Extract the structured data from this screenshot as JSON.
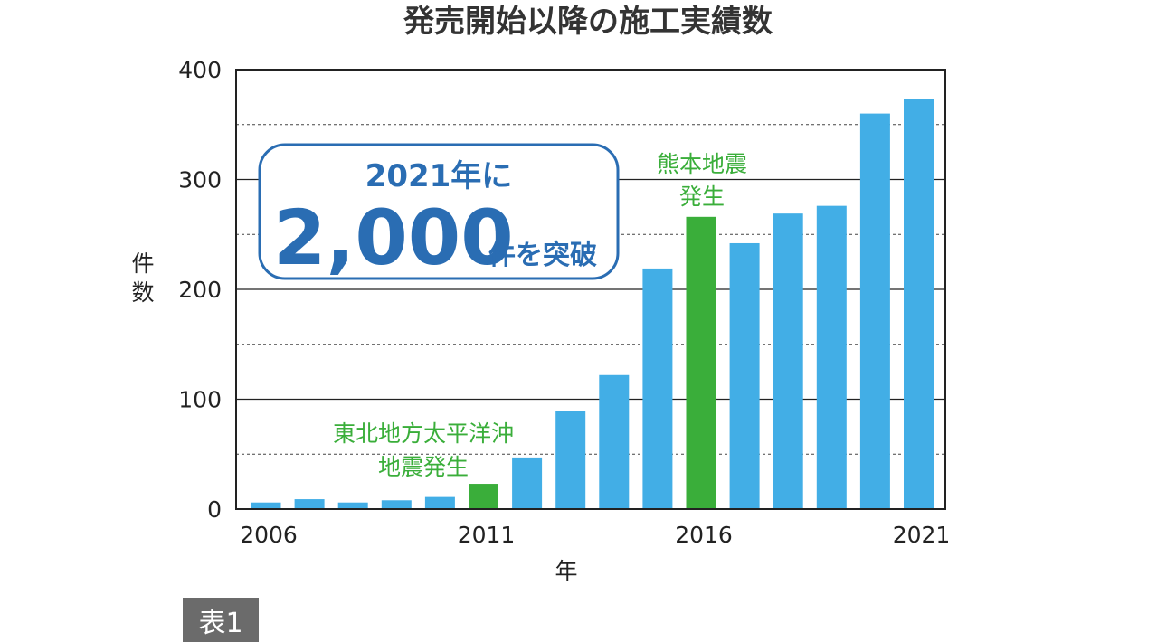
{
  "chart_data": {
    "type": "bar",
    "title": "発売開始以降の施工実績数",
    "xlabel": "年",
    "ylabel": "件数",
    "ylim": [
      0,
      400
    ],
    "yticks": [
      0,
      100,
      200,
      300,
      400
    ],
    "grid": "solid lines at 100-step ticks, dashed lines at midpoints",
    "categories": [
      "2006",
      "2007",
      "2008",
      "2009",
      "2010",
      "2011",
      "2012",
      "2013",
      "2014",
      "2015",
      "2016",
      "2017",
      "2018",
      "2019",
      "2020",
      "2021"
    ],
    "x_tick_labels": [
      "2006",
      "2011",
      "2016",
      "2021"
    ],
    "values": [
      6,
      9,
      6,
      8,
      11,
      23,
      47,
      89,
      122,
      219,
      266,
      242,
      269,
      276,
      360,
      373
    ],
    "highlight_years": [
      "2011",
      "2016"
    ],
    "colors": {
      "bar": "#42aee6",
      "highlight": "#3aae3a",
      "callout": "#2a6db3"
    }
  },
  "annotations": {
    "kumamoto_line1": "熊本地震",
    "kumamoto_line2": "発生",
    "tohoku_line1": "東北地方太平洋沖",
    "tohoku_line2": "地震発生"
  },
  "callout": {
    "line1": "2021年に",
    "big": "2,000",
    "suffix": "件を突破"
  },
  "table_tag": "表1"
}
